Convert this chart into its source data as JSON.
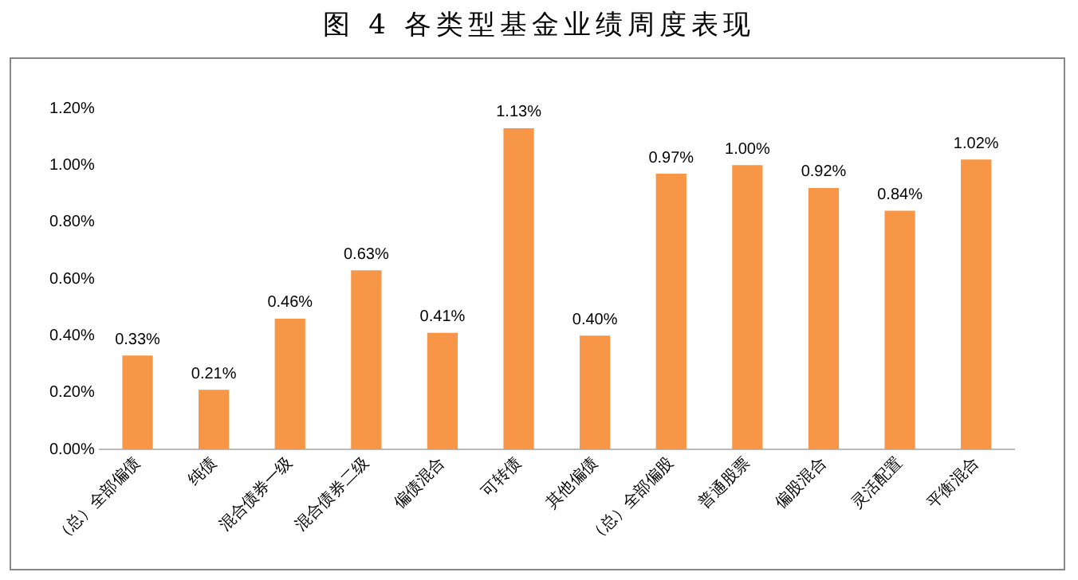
{
  "chart_data": {
    "type": "bar",
    "title": "图 4 各类型基金业绩周度表现",
    "categories": [
      "（总）全部偏债",
      "纯债",
      "混合债券一级",
      "混合债券二级",
      "偏债混合",
      "可转债",
      "其他偏债",
      "（总）全部偏股",
      "普通股票",
      "偏股混合",
      "灵活配置",
      "平衡混合"
    ],
    "values": [
      0.33,
      0.21,
      0.46,
      0.63,
      0.41,
      1.13,
      0.4,
      0.97,
      1.0,
      0.92,
      0.84,
      1.02
    ],
    "value_labels": [
      "0.33%",
      "0.21%",
      "0.46%",
      "0.63%",
      "0.41%",
      "1.13%",
      "0.40%",
      "0.97%",
      "1.00%",
      "0.92%",
      "0.84%",
      "1.02%"
    ],
    "color": "#f79646",
    "ylim": [
      0,
      1.2
    ],
    "yticks": [
      {
        "value": 0,
        "label": "0.00%"
      },
      {
        "value": 0.2,
        "label": "0.20%"
      },
      {
        "value": 0.4,
        "label": "0.40%"
      },
      {
        "value": 0.6,
        "label": "0.60%"
      },
      {
        "value": 0.8,
        "label": "0.80%"
      },
      {
        "value": 1.0,
        "label": "1.00%"
      },
      {
        "value": 1.2,
        "label": "1.20%"
      }
    ],
    "grid": false,
    "legend": false
  }
}
